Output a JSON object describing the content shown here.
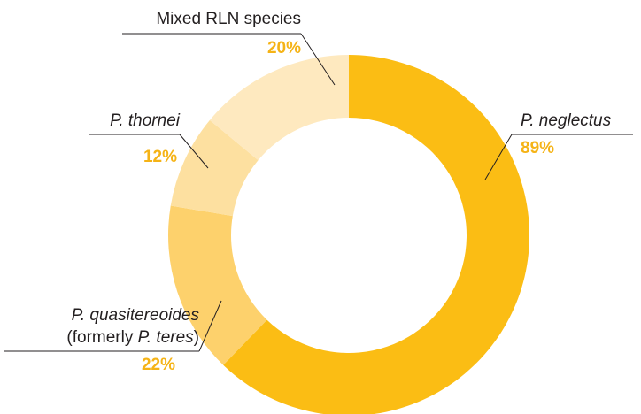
{
  "chart_data": {
    "type": "pie",
    "categories": [
      [
        "P. neglectus"
      ],
      [
        "P. quasitereoides",
        "(formerly P. teres)"
      ],
      [
        "P. thornei"
      ],
      [
        "Mixed RLN species"
      ]
    ],
    "values": [
      89,
      22,
      12,
      20
    ],
    "value_labels": [
      "89%",
      "22%",
      "12%",
      "20%"
    ],
    "colors": [
      "#fbbd14",
      "#fdd16c",
      "#fde0a0",
      "#fee9bf"
    ]
  }
}
